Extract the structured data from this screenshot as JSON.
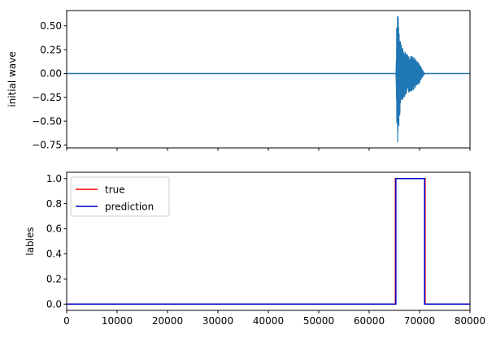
{
  "chart_data": [
    {
      "type": "line",
      "ylabel": "initial wave",
      "xlim": [
        0,
        80000
      ],
      "ylim": [
        -0.78,
        0.66
      ],
      "xticks": [
        0,
        10000,
        20000,
        30000,
        40000,
        50000,
        60000,
        70000,
        80000
      ],
      "show_xtick_labels": false,
      "yticks": [
        -0.75,
        -0.5,
        -0.25,
        0.0,
        0.25,
        0.5
      ],
      "ytick_labels": [
        "−0.75",
        "−0.50",
        "−0.25",
        "0.00",
        "0.25",
        "0.50"
      ],
      "series": [
        {
          "color": "#1f77b4",
          "baseline": 0.0,
          "burst": {
            "start": 65300,
            "peak_x": 65700,
            "end": 71000,
            "max_pos": 0.6,
            "max_neg": -0.72,
            "envelope": [
              [
                65300,
                0.0
              ],
              [
                65500,
                0.45
              ],
              [
                65700,
                0.62
              ],
              [
                65900,
                0.55
              ],
              [
                66300,
                0.32
              ],
              [
                66800,
                0.26
              ],
              [
                67500,
                0.22
              ],
              [
                68300,
                0.19
              ],
              [
                69000,
                0.17
              ],
              [
                69800,
                0.12
              ],
              [
                70500,
                0.05
              ],
              [
                71000,
                0.0
              ]
            ]
          }
        }
      ]
    },
    {
      "type": "line",
      "ylabel": "lables",
      "xlim": [
        0,
        80000
      ],
      "ylim": [
        -0.05,
        1.05
      ],
      "xticks": [
        0,
        10000,
        20000,
        30000,
        40000,
        50000,
        60000,
        70000,
        80000
      ],
      "xtick_labels": [
        "0",
        "10000",
        "20000",
        "30000",
        "40000",
        "50000",
        "60000",
        "70000",
        "80000"
      ],
      "yticks": [
        0.0,
        0.2,
        0.4,
        0.6,
        0.8,
        1.0
      ],
      "ytick_labels": [
        "0.0",
        "0.2",
        "0.4",
        "0.6",
        "0.8",
        "1.0"
      ],
      "legend": {
        "placement": "upper-left"
      },
      "series": [
        {
          "name": "true",
          "color": "#ff0000",
          "x": [
            0,
            65200,
            65200,
            71100,
            71100,
            80000
          ],
          "y": [
            0,
            0,
            1,
            1,
            0,
            0
          ]
        },
        {
          "name": "prediction",
          "color": "#0000cc",
          "x": [
            0,
            65300,
            65300,
            71000,
            71000,
            80000
          ],
          "y": [
            0,
            0,
            1,
            1,
            0,
            0
          ]
        }
      ]
    }
  ]
}
